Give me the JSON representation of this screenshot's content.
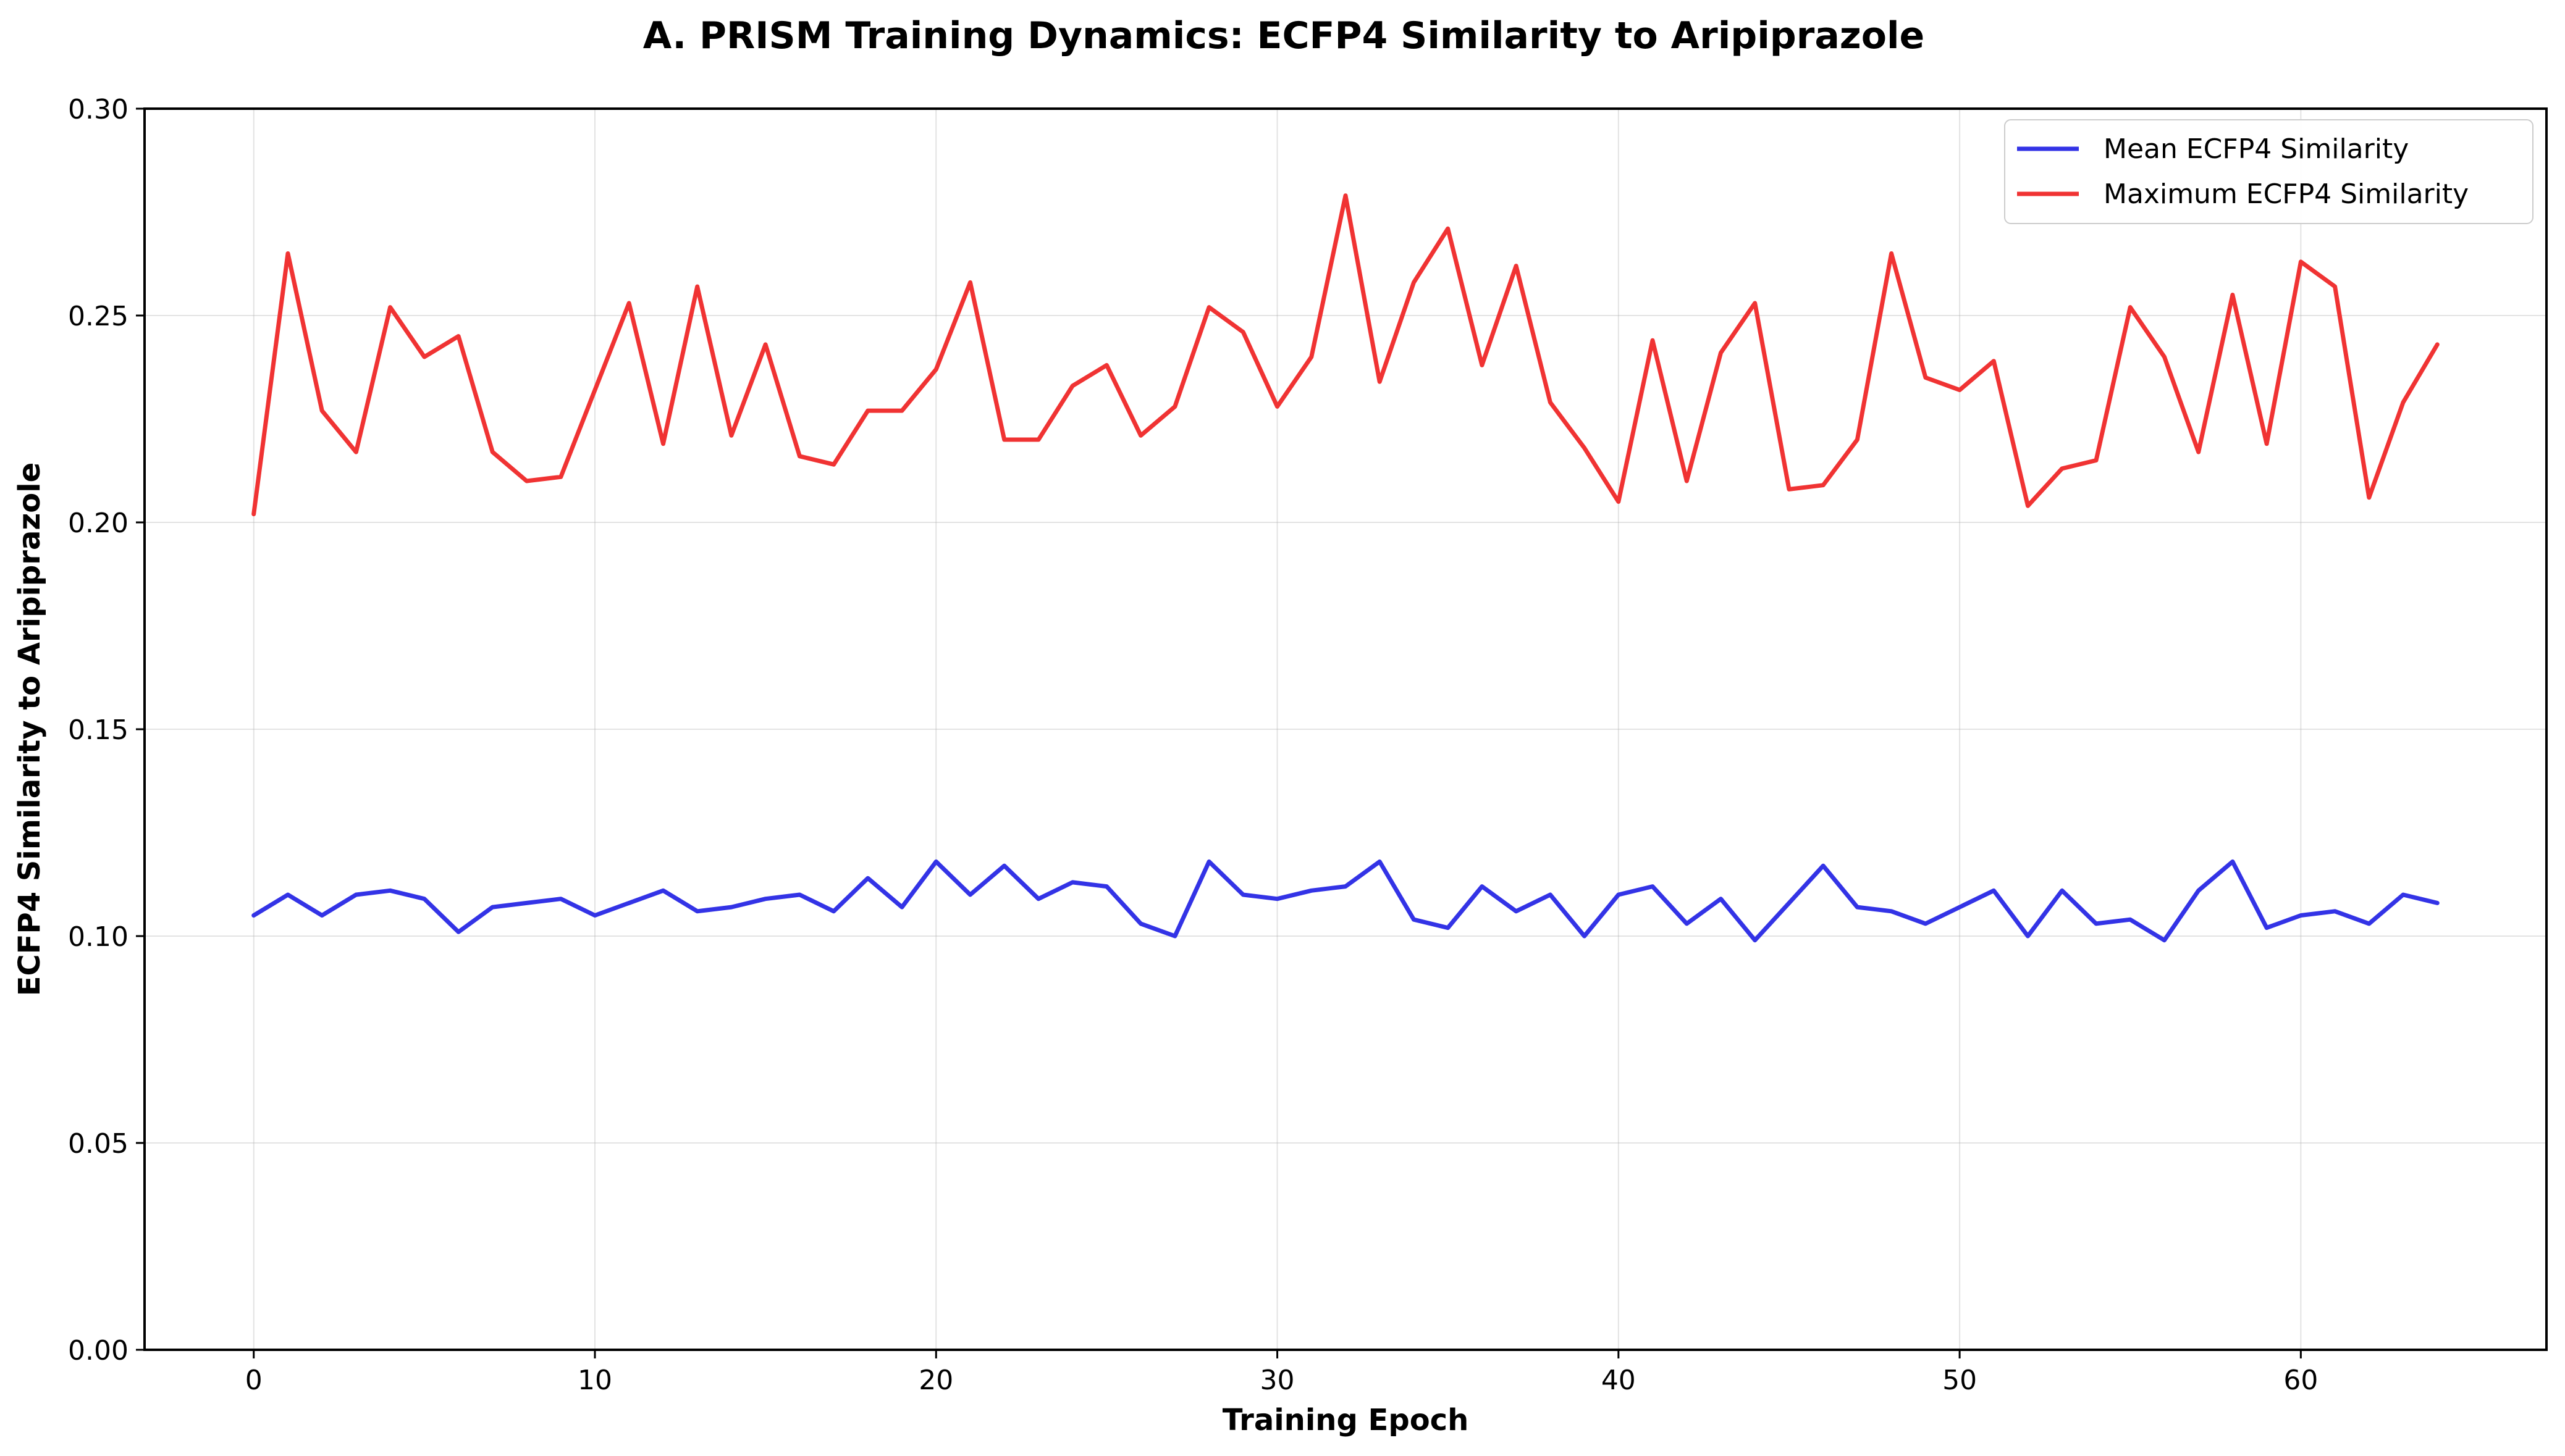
{
  "chart_data": {
    "type": "line",
    "title": "A. PRISM Training Dynamics: ECFP4 Similarity to Aripiprazole",
    "xlabel": "Training Epoch",
    "ylabel": "ECFP4 Similarity to Aripiprazole",
    "xlim": [
      -3.2,
      67.2
    ],
    "ylim": [
      0.0,
      0.3
    ],
    "xticks": [
      0,
      10,
      20,
      30,
      40,
      50,
      60
    ],
    "xtick_labels": [
      "0",
      "10",
      "20",
      "30",
      "40",
      "50",
      "60"
    ],
    "yticks": [
      0.0,
      0.05,
      0.1,
      0.15,
      0.2,
      0.25,
      0.3
    ],
    "ytick_labels": [
      "0.00",
      "0.05",
      "0.10",
      "0.15",
      "0.20",
      "0.25",
      "0.30"
    ],
    "grid": true,
    "legend_position": "top-right",
    "x": [
      0,
      1,
      2,
      3,
      4,
      5,
      6,
      7,
      8,
      9,
      10,
      11,
      12,
      13,
      14,
      15,
      16,
      17,
      18,
      19,
      20,
      21,
      22,
      23,
      24,
      25,
      26,
      27,
      28,
      29,
      30,
      31,
      32,
      33,
      34,
      35,
      36,
      37,
      38,
      39,
      40,
      41,
      42,
      43,
      44,
      45,
      46,
      47,
      48,
      49,
      50,
      51,
      52,
      53,
      54,
      55,
      56,
      57,
      58,
      59,
      60,
      61,
      62,
      63,
      64
    ],
    "series": [
      {
        "name": "Mean ECFP4 Similarity",
        "color": "#3333e6",
        "values": [
          0.105,
          0.11,
          0.105,
          0.11,
          0.111,
          0.109,
          0.101,
          0.107,
          0.108,
          0.109,
          0.105,
          0.108,
          0.111,
          0.106,
          0.107,
          0.109,
          0.11,
          0.106,
          0.114,
          0.107,
          0.118,
          0.11,
          0.117,
          0.109,
          0.113,
          0.112,
          0.103,
          0.1,
          0.118,
          0.11,
          0.109,
          0.111,
          0.112,
          0.118,
          0.104,
          0.102,
          0.112,
          0.106,
          0.11,
          0.1,
          0.11,
          0.112,
          0.103,
          0.109,
          0.099,
          0.108,
          0.117,
          0.107,
          0.106,
          0.103,
          0.107,
          0.111,
          0.1,
          0.111,
          0.103,
          0.104,
          0.099,
          0.111,
          0.118,
          0.102,
          0.105,
          0.106,
          0.103,
          0.11,
          0.108
        ]
      },
      {
        "name": "Maximum ECFP4 Similarity",
        "color": "#f03333",
        "values": [
          0.202,
          0.265,
          0.227,
          0.217,
          0.252,
          0.24,
          0.245,
          0.217,
          0.21,
          0.211,
          0.232,
          0.253,
          0.219,
          0.257,
          0.221,
          0.243,
          0.216,
          0.214,
          0.227,
          0.227,
          0.237,
          0.258,
          0.22,
          0.22,
          0.233,
          0.238,
          0.221,
          0.228,
          0.252,
          0.246,
          0.228,
          0.24,
          0.279,
          0.234,
          0.258,
          0.271,
          0.238,
          0.262,
          0.229,
          0.218,
          0.205,
          0.244,
          0.21,
          0.241,
          0.253,
          0.208,
          0.209,
          0.22,
          0.265,
          0.235,
          0.232,
          0.239,
          0.204,
          0.213,
          0.215,
          0.252,
          0.24,
          0.217,
          0.255,
          0.219,
          0.263,
          0.257,
          0.206,
          0.229,
          0.243
        ]
      }
    ]
  }
}
